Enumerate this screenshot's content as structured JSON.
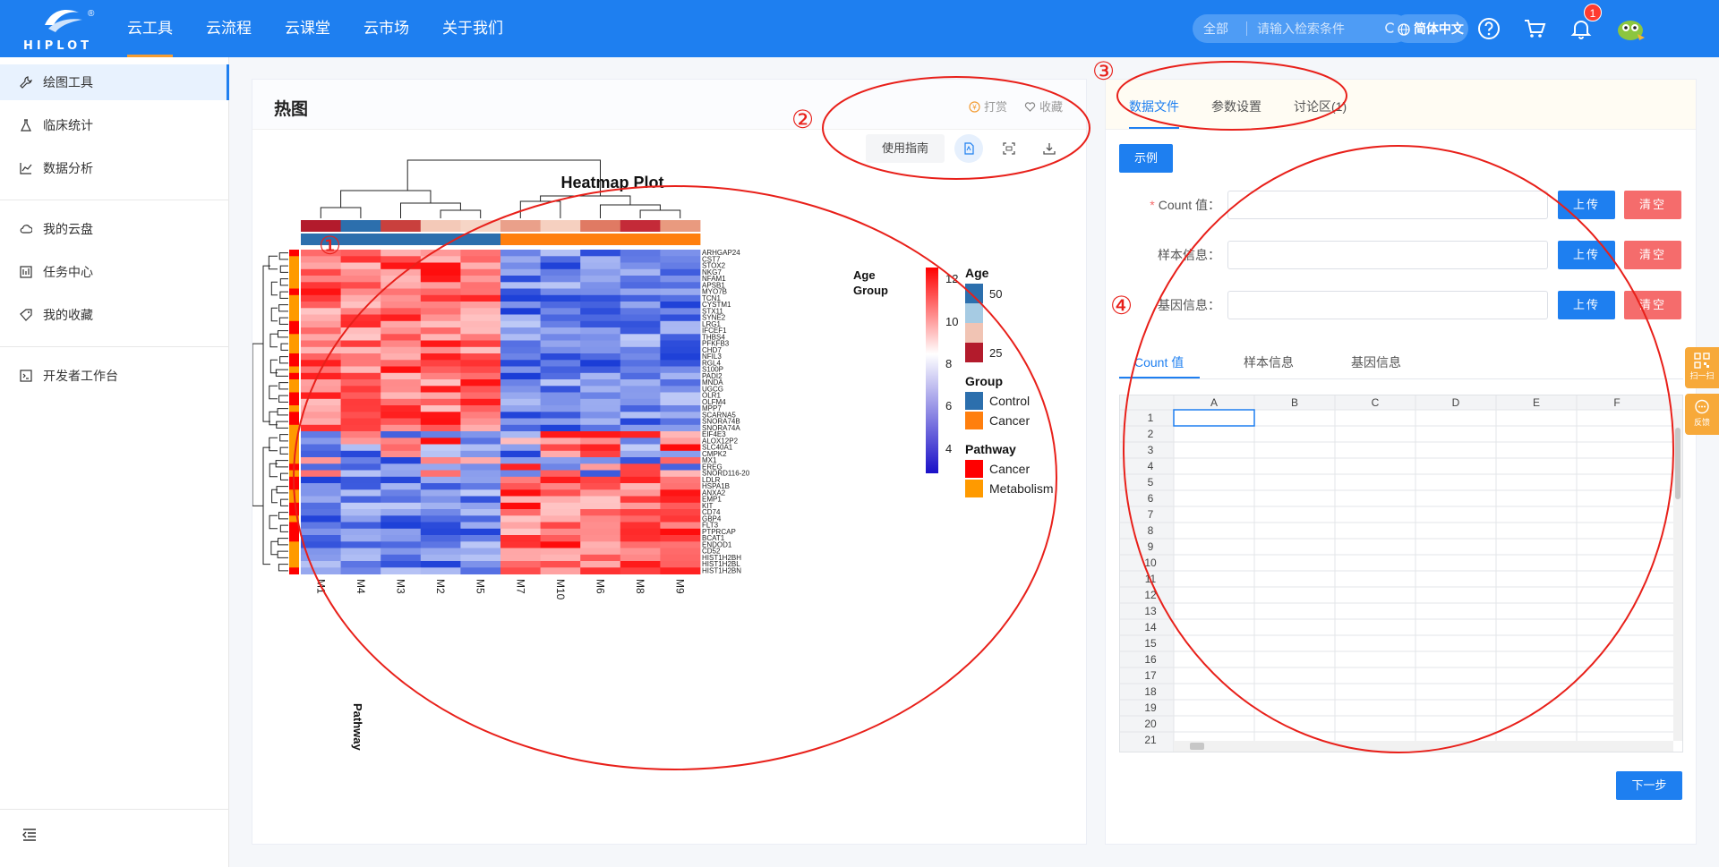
{
  "brand": {
    "name": "HIPLOT",
    "reg": "®"
  },
  "nav": [
    {
      "label": "云工具",
      "active": true
    },
    {
      "label": "云流程"
    },
    {
      "label": "云课堂"
    },
    {
      "label": "云市场"
    },
    {
      "label": "关于我们"
    }
  ],
  "search": {
    "scope": "全部",
    "placeholder": "请输入检索条件"
  },
  "language": "简体中文",
  "notifications": {
    "count": "1"
  },
  "sidebar": {
    "items": [
      {
        "label": "绘图工具",
        "icon": "wrench-icon",
        "active": true
      },
      {
        "label": "临床统计",
        "icon": "flask-icon"
      },
      {
        "label": "数据分析",
        "icon": "line-chart-icon"
      },
      {
        "label": "我的云盘",
        "icon": "cloud-icon"
      },
      {
        "label": "任务中心",
        "icon": "task-icon"
      },
      {
        "label": "我的收藏",
        "icon": "tag-icon"
      },
      {
        "label": "开发者工作台",
        "icon": "terminal-icon"
      }
    ]
  },
  "center": {
    "title": "热图",
    "reward": "打赏",
    "favorite": "收藏",
    "guide": "使用指南"
  },
  "heatmap": {
    "title": "Heatmap Plot",
    "samples": [
      "M1",
      "M4",
      "M3",
      "M2",
      "M5",
      "M7",
      "M10",
      "M6",
      "M8",
      "M9"
    ],
    "genes": [
      "ARHGAP24",
      "CST7",
      "STOX2",
      "NKG7",
      "NFAM1",
      "APSB1",
      "MYO7B",
      "TCN1",
      "CYSTM1",
      "STX11",
      "SYNE2",
      "LRG1",
      "IFCEF1",
      "THBS4",
      "PFKFB3",
      "CHD7",
      "NFIL3",
      "RGL4",
      "S100P",
      "PADI2",
      "MNDA",
      "UGCG",
      "OLR1",
      "OLFM4",
      "MPP7",
      "SCARNA5",
      "SNORA74B",
      "SNORA74A",
      "EIF4E3",
      "ALOX12P2",
      "SLC40A1",
      "CMPK2",
      "MX1",
      "EREG",
      "SNORD116-20",
      "LDLR",
      "HSPA1B",
      "ANXA2",
      "EMP1",
      "KIT",
      "CD74",
      "GBP4",
      "FLT3",
      "PTPRCAP",
      "BCAT1",
      "ENDOD1",
      "CD52",
      "HIST1H2BH",
      "HIST1H2BL",
      "HIST1H2BN"
    ],
    "row_labels": {
      "age": "Age",
      "group": "Group",
      "pathway": "Pathway"
    },
    "legend": {
      "color_ticks": [
        "12",
        "10",
        "8",
        "6",
        "4"
      ],
      "age": {
        "title": "Age",
        "items": [
          "50",
          "25"
        ]
      },
      "group": {
        "title": "Group",
        "items": [
          "Control",
          "Cancer"
        ]
      },
      "pathway": {
        "title": "Pathway",
        "items": [
          "Cancer",
          "Metabolism"
        ]
      }
    },
    "colors": {
      "group_control": "#2c6fad",
      "group_cancer": "#ff7f0e",
      "pathway_cancer": "#ff0000",
      "pathway_metabolism": "#ff9a00"
    }
  },
  "right": {
    "tabs": [
      "数据文件",
      "参数设置",
      "讨论区(1)"
    ],
    "example": "示例",
    "fields": [
      {
        "label": "Count 值：",
        "required": true
      },
      {
        "label": "样本信息："
      },
      {
        "label": "基因信息："
      }
    ],
    "upload": "上传",
    "clear": "清空",
    "data_tabs": [
      "Count 值",
      "样本信息",
      "基因信息"
    ],
    "sheet_cols": [
      "A",
      "B",
      "C",
      "D",
      "E",
      "F"
    ],
    "sheet_rows": [
      "1",
      "2",
      "3",
      "4",
      "5",
      "6",
      "7",
      "8",
      "9",
      "10",
      "11",
      "12",
      "13",
      "14",
      "15",
      "16",
      "17",
      "18",
      "19",
      "20",
      "21"
    ],
    "next": "下一步"
  },
  "float": {
    "qr": "扫一扫",
    "feedback": "反馈"
  },
  "annotations": [
    "①",
    "②",
    "③",
    "④"
  ]
}
